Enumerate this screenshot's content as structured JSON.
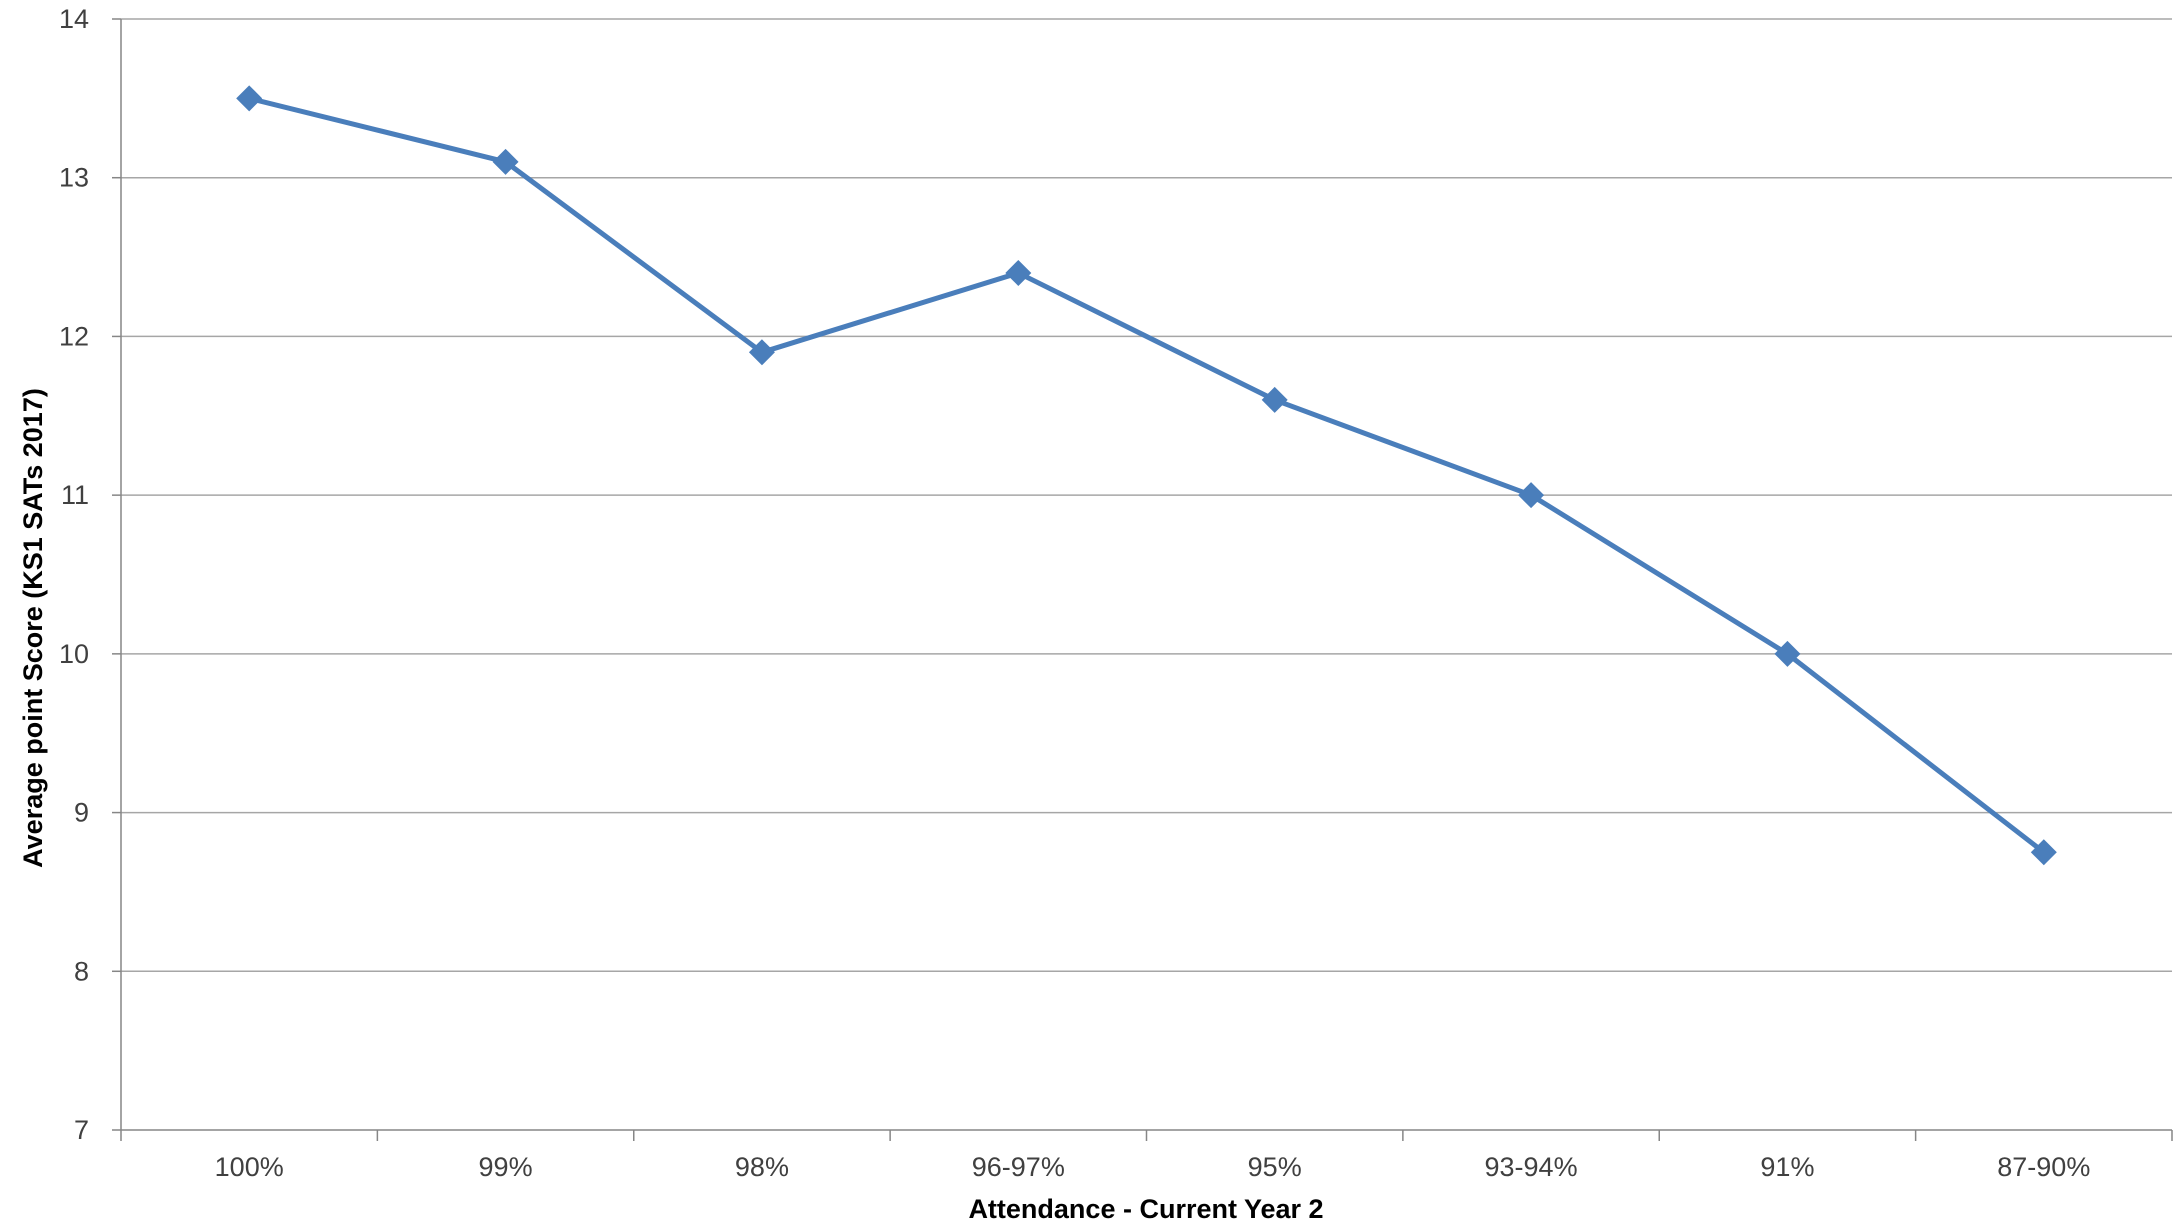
{
  "chart_data": {
    "type": "line",
    "title": "",
    "xlabel": "Attendance - Current Year 2",
    "ylabel": "Average point Score (KS1 SATs 2017)",
    "categories": [
      "100%",
      "99%",
      "98%",
      "96-97%",
      "95%",
      "93-94%",
      "91%",
      "87-90%"
    ],
    "series": [
      {
        "values": [
          13.5,
          13.1,
          11.9,
          12.4,
          11.6,
          11.0,
          10.0,
          8.75
        ]
      }
    ],
    "ylim": [
      7,
      14
    ],
    "yticks": [
      7,
      8,
      9,
      10,
      11,
      12,
      13,
      14
    ],
    "grid": "horizontal",
    "legend": "none",
    "marker": "diamond",
    "colors": {
      "series": "#4a7ebb",
      "marker": "#4a7ebb",
      "grid": "#a6a6a6",
      "axis": "#868686",
      "text": "#404040"
    }
  }
}
